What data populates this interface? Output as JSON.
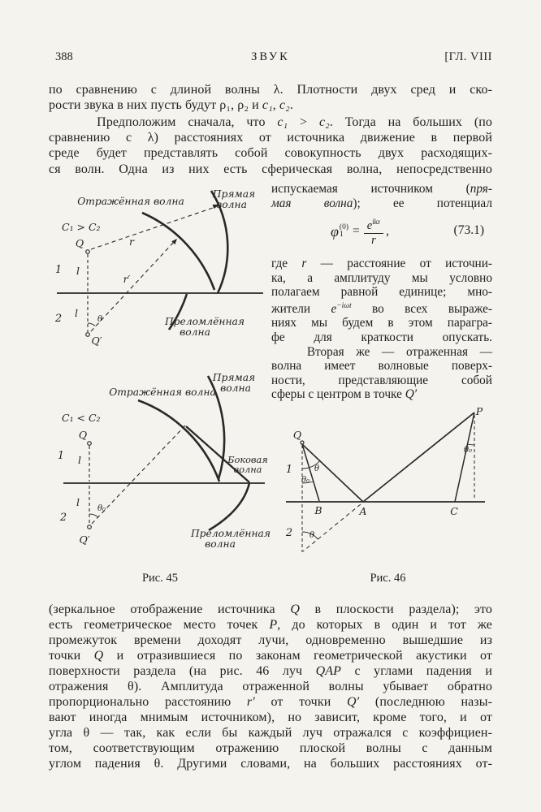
{
  "header": {
    "page_number": "388",
    "running_title": "ЗВУК",
    "chapter": "[ГЛ. VIII"
  },
  "intro": {
    "lines": [
      "по сравнению с длиной волны λ. Плотности двух сред и ско-",
      "рости звука в них пусть будут ρ₁, ρ₂ и *c₁*, *c₂*."
    ]
  },
  "para2": {
    "lines": [
      "    Предположим сначала, что *c₁* > *c₂*. Тогда на больших (по",
      "сравнению с λ) расстояниях от источника движение в первой",
      "среде будет представлять собой совокупность двух расходящих-",
      "ся волн. Одна из них есть сферическая волна, непосредственно"
    ]
  },
  "right_col_1": {
    "lines": [
      "испускаемая источником (*пря-*",
      "*мая волна*); ее потенциал"
    ]
  },
  "formula": {
    "phi": "φ",
    "sup": "(0)",
    "sub": "1",
    "eq": "=",
    "num_base": "e",
    "num_exp": "ikr",
    "den": "r",
    "comma": ",",
    "number": "(73.1)"
  },
  "right_col_2": {
    "lines": [
      "где *r* — расстояние от источни-",
      "ка, а амплитуду мы условно",
      "полагаем равной единице; мно-",
      "жители *e^{−iωt}* во всех выраже-",
      "ниях мы будем в этом парагра-",
      "фе для краткости опускать.",
      "   Вторая же — отраженная —",
      "волна имеет волновые поверх-",
      "ности, представляющие собой",
      "сферы с центром в точке *Q′*"
    ]
  },
  "fig45_top": {
    "reflected_label": "Отражённая волна",
    "direct_label_1": "Прямая",
    "direct_label_2": "волна",
    "refracted_label_1": "Преломлённая",
    "refracted_label_2": "волна",
    "condition": "C₁ > C₂",
    "source": "Q",
    "image_source": "Q′",
    "medium_1": "1",
    "medium_2": "2",
    "depth_upper": "l",
    "depth_lower": "l",
    "ray_direct": "r",
    "ray_reflected": "r′",
    "angle": "θ"
  },
  "fig45_bottom": {
    "reflected_label": "Отражённая волна",
    "direct_label_1": "Прямая",
    "direct_label_2": "волна",
    "lateral_label_1": "Боковая",
    "lateral_label_2": "волна",
    "refracted_label_1": "Преломлённая",
    "refracted_label_2": "волна",
    "condition": "C₁ < C₂",
    "source": "Q",
    "image_source": "Q′",
    "medium_1": "1",
    "medium_2": "2",
    "depth_upper": "l",
    "depth_lower": "l",
    "angle": "θ₀"
  },
  "fig46": {
    "q": "Q",
    "p": "P",
    "a": "A",
    "b": "B",
    "c": "C",
    "medium_1": "1",
    "medium_2": "2",
    "angle_incidence": "θ",
    "angle_critical": "θ₀",
    "angle_p": "θ₀",
    "angle_lower": "θ"
  },
  "captions": {
    "fig45": "Рис. 45",
    "fig46": "Рис. 46"
  },
  "bottom": {
    "lines": [
      "(зеркальное отображение источника *Q* в плоскости раздела); это",
      "есть геометрическое место точек *P*, до которых в один и тот же",
      "промежуток времени доходят лучи, одновременно вышедшие из",
      "точки *Q* и отразившиеся по законам геометрической акустики от",
      "поверхности раздела (на рис. 46 луч *QAP* с углами падения и",
      "отражения θ). Амплитуда отраженной волны убывает обратно",
      "пропорционально расстоянию *r′* от точки *Q′* (последнюю назы-",
      "вают иногда мнимым источником), но зависит, кроме того, и от",
      "угла θ — так, как если бы каждый луч отражался с коэффициен-",
      "том, соответствующим отражению плоской волны с данным",
      "углом падения θ. Другими словами, на больших расстояниях от-"
    ]
  }
}
